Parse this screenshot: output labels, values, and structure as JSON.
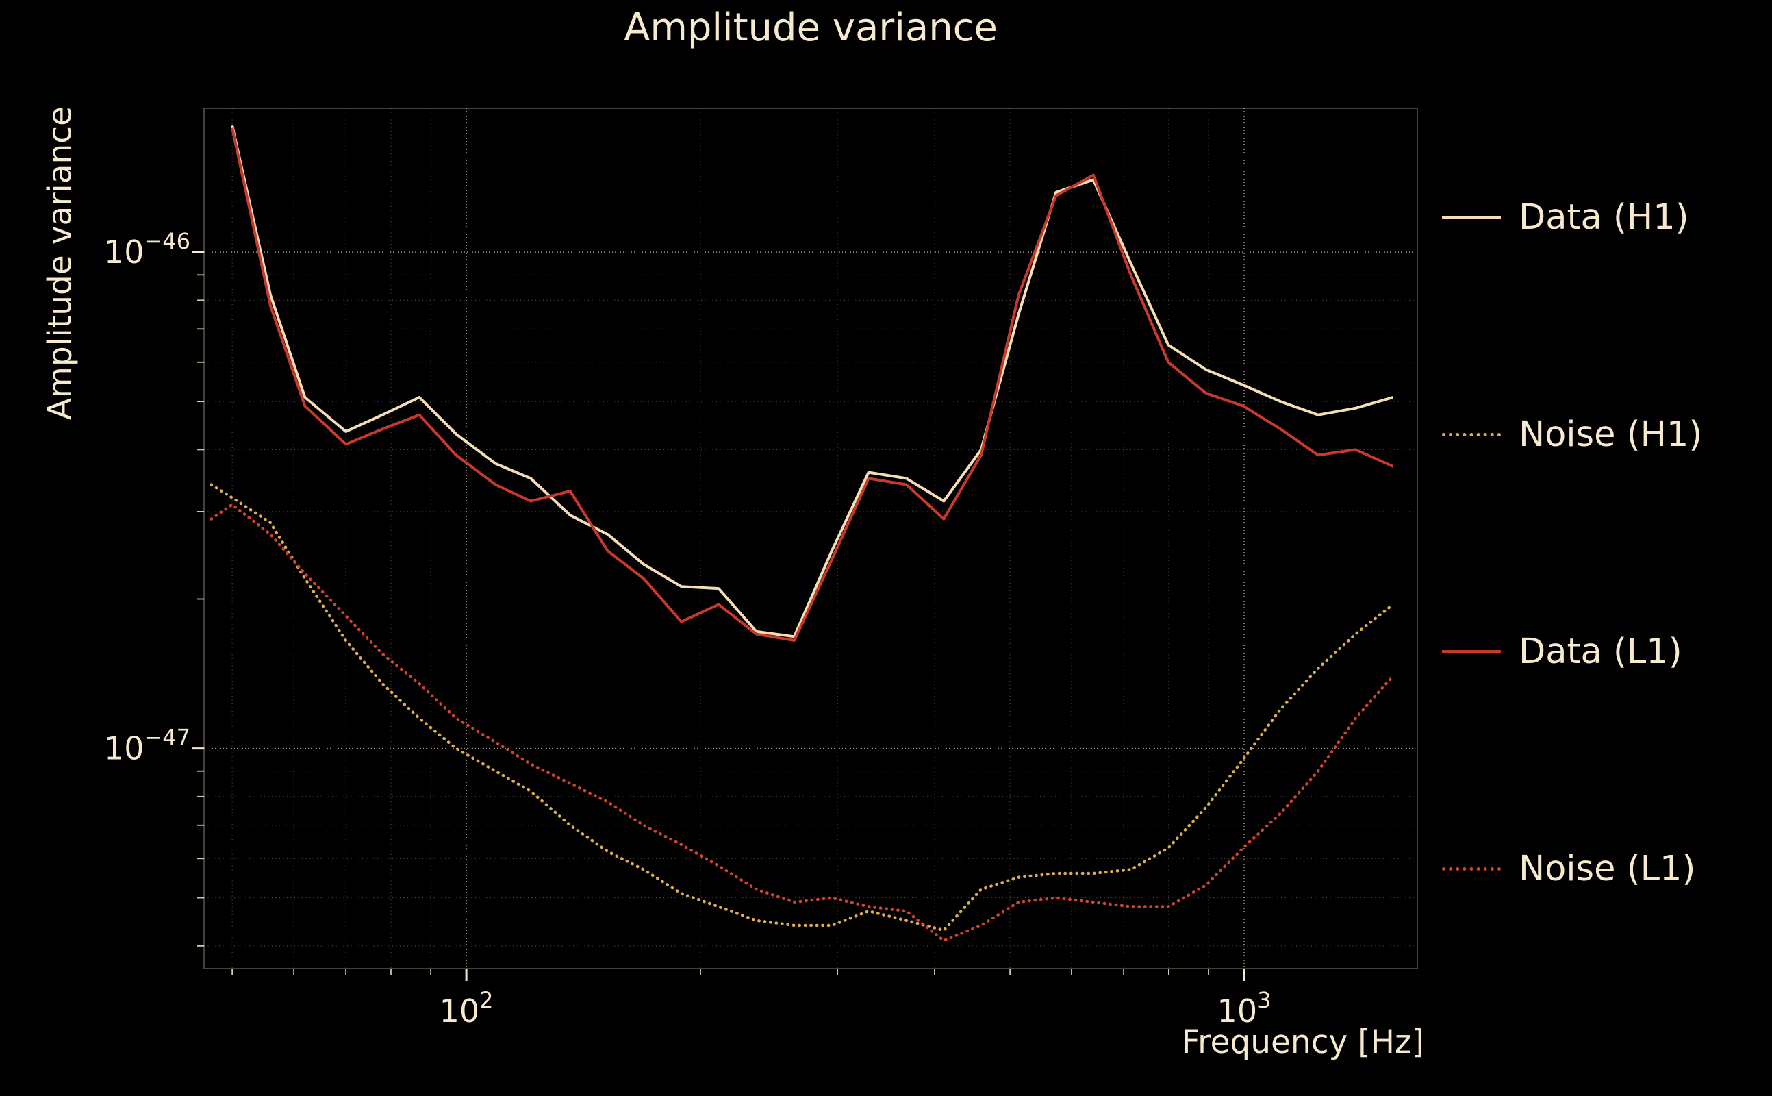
{
  "title": "Amplitude variance",
  "axes": {
    "x_label": "Frequency [Hz]",
    "y_label": "Amplitude variance",
    "x_tick_exponents": [
      2,
      3
    ],
    "y_tick_exponents": [
      -46,
      -47
    ]
  },
  "colors": {
    "background": "#000000",
    "text": "#f6e9cd",
    "grid": "#d8cdb4",
    "frame": "#9a917e"
  },
  "legend": {
    "items": [
      {
        "label": "Data (H1)"
      },
      {
        "label": "Noise (H1)"
      },
      {
        "label": "Data (L1)"
      },
      {
        "label": "Noise (L1)"
      }
    ]
  },
  "chart_data": {
    "type": "line",
    "title": "Amplitude variance",
    "xlabel": "Frequency [Hz]",
    "ylabel": "Amplitude variance",
    "x_scale": "log",
    "y_scale": "log",
    "xlim": [
      46,
      1670
    ],
    "ylim": [
      3.6e-48,
      1.95e-46
    ],
    "grid": "both",
    "legend_position": "right-outside",
    "series": [
      {
        "name": "Data (H1)",
        "color": "#f5deb3",
        "line_style": "solid",
        "points": [
          [
            50,
            1.8e-46
          ],
          [
            56,
            8.2e-47
          ],
          [
            62,
            5.1e-47
          ],
          [
            70,
            4.35e-47
          ],
          [
            78,
            4.7e-47
          ],
          [
            87,
            5.1e-47
          ],
          [
            97,
            4.3e-47
          ],
          [
            109,
            3.75e-47
          ],
          [
            121,
            3.5e-47
          ],
          [
            136,
            2.95e-47
          ],
          [
            152,
            2.7e-47
          ],
          [
            169,
            2.35e-47
          ],
          [
            189,
            2.12e-47
          ],
          [
            211,
            2.1e-47
          ],
          [
            236,
            1.72e-47
          ],
          [
            264,
            1.68e-47
          ],
          [
            295,
            2.5e-47
          ],
          [
            329,
            3.6e-47
          ],
          [
            368,
            3.5e-47
          ],
          [
            411,
            3.15e-47
          ],
          [
            459,
            4e-47
          ],
          [
            513,
            7.5e-47
          ],
          [
            573,
            1.32e-46
          ],
          [
            640,
            1.4e-46
          ],
          [
            715,
            9.5e-47
          ],
          [
            799,
            6.5e-47
          ],
          [
            893,
            5.8e-47
          ],
          [
            997,
            5.4e-47
          ],
          [
            1114,
            5e-47
          ],
          [
            1245,
            4.7e-47
          ],
          [
            1391,
            4.85e-47
          ],
          [
            1554,
            5.1e-47
          ]
        ]
      },
      {
        "name": "Noise (H1)",
        "color": "#dcae4e",
        "line_style": "dotted",
        "points": [
          [
            47,
            3.4e-47
          ],
          [
            50,
            3.2e-47
          ],
          [
            56,
            2.85e-47
          ],
          [
            62,
            2.2e-47
          ],
          [
            70,
            1.65e-47
          ],
          [
            78,
            1.35e-47
          ],
          [
            87,
            1.15e-47
          ],
          [
            97,
            1e-47
          ],
          [
            109,
            9e-48
          ],
          [
            121,
            8.2e-48
          ],
          [
            136,
            7e-48
          ],
          [
            152,
            6.2e-48
          ],
          [
            169,
            5.7e-48
          ],
          [
            189,
            5.1e-48
          ],
          [
            211,
            4.8e-48
          ],
          [
            236,
            4.5e-48
          ],
          [
            264,
            4.4e-48
          ],
          [
            295,
            4.4e-48
          ],
          [
            329,
            4.7e-48
          ],
          [
            368,
            4.5e-48
          ],
          [
            411,
            4.3e-48
          ],
          [
            459,
            5.2e-48
          ],
          [
            513,
            5.5e-48
          ],
          [
            573,
            5.6e-48
          ],
          [
            640,
            5.6e-48
          ],
          [
            715,
            5.7e-48
          ],
          [
            799,
            6.3e-48
          ],
          [
            893,
            7.6e-48
          ],
          [
            997,
            9.5e-48
          ],
          [
            1114,
            1.2e-47
          ],
          [
            1245,
            1.45e-47
          ],
          [
            1391,
            1.7e-47
          ],
          [
            1554,
            1.95e-47
          ]
        ]
      },
      {
        "name": "Data (L1)",
        "color": "#c8392b",
        "line_style": "solid",
        "points": [
          [
            50,
            1.78e-46
          ],
          [
            56,
            7.8e-47
          ],
          [
            62,
            4.9e-47
          ],
          [
            70,
            4.1e-47
          ],
          [
            78,
            4.4e-47
          ],
          [
            87,
            4.7e-47
          ],
          [
            97,
            3.9e-47
          ],
          [
            109,
            3.4e-47
          ],
          [
            121,
            3.15e-47
          ],
          [
            136,
            3.3e-47
          ],
          [
            152,
            2.5e-47
          ],
          [
            169,
            2.2e-47
          ],
          [
            189,
            1.8e-47
          ],
          [
            211,
            1.95e-47
          ],
          [
            236,
            1.7e-47
          ],
          [
            264,
            1.65e-47
          ],
          [
            295,
            2.4e-47
          ],
          [
            329,
            3.5e-47
          ],
          [
            368,
            3.4e-47
          ],
          [
            411,
            2.9e-47
          ],
          [
            459,
            3.9e-47
          ],
          [
            513,
            8.2e-47
          ],
          [
            573,
            1.3e-46
          ],
          [
            640,
            1.43e-46
          ],
          [
            715,
            9e-47
          ],
          [
            799,
            6e-47
          ],
          [
            893,
            5.2e-47
          ],
          [
            997,
            4.9e-47
          ],
          [
            1114,
            4.4e-47
          ],
          [
            1245,
            3.9e-47
          ],
          [
            1391,
            4e-47
          ],
          [
            1554,
            3.7e-47
          ]
        ]
      },
      {
        "name": "Noise (L1)",
        "color": "#d2432d",
        "line_style": "dotted",
        "points": [
          [
            47,
            2.9e-47
          ],
          [
            50,
            3.1e-47
          ],
          [
            56,
            2.7e-47
          ],
          [
            62,
            2.25e-47
          ],
          [
            70,
            1.85e-47
          ],
          [
            78,
            1.55e-47
          ],
          [
            87,
            1.35e-47
          ],
          [
            97,
            1.15e-47
          ],
          [
            109,
            1.03e-47
          ],
          [
            121,
            9.3e-48
          ],
          [
            136,
            8.5e-48
          ],
          [
            152,
            7.8e-48
          ],
          [
            169,
            7e-48
          ],
          [
            189,
            6.4e-48
          ],
          [
            211,
            5.8e-48
          ],
          [
            236,
            5.2e-48
          ],
          [
            264,
            4.9e-48
          ],
          [
            295,
            5e-48
          ],
          [
            329,
            4.8e-48
          ],
          [
            368,
            4.7e-48
          ],
          [
            411,
            4.1e-48
          ],
          [
            459,
            4.4e-48
          ],
          [
            513,
            4.9e-48
          ],
          [
            573,
            5e-48
          ],
          [
            640,
            4.9e-48
          ],
          [
            715,
            4.8e-48
          ],
          [
            799,
            4.8e-48
          ],
          [
            893,
            5.3e-48
          ],
          [
            997,
            6.3e-48
          ],
          [
            1114,
            7.4e-48
          ],
          [
            1245,
            9e-48
          ],
          [
            1391,
            1.15e-47
          ],
          [
            1554,
            1.4e-47
          ]
        ]
      }
    ]
  }
}
